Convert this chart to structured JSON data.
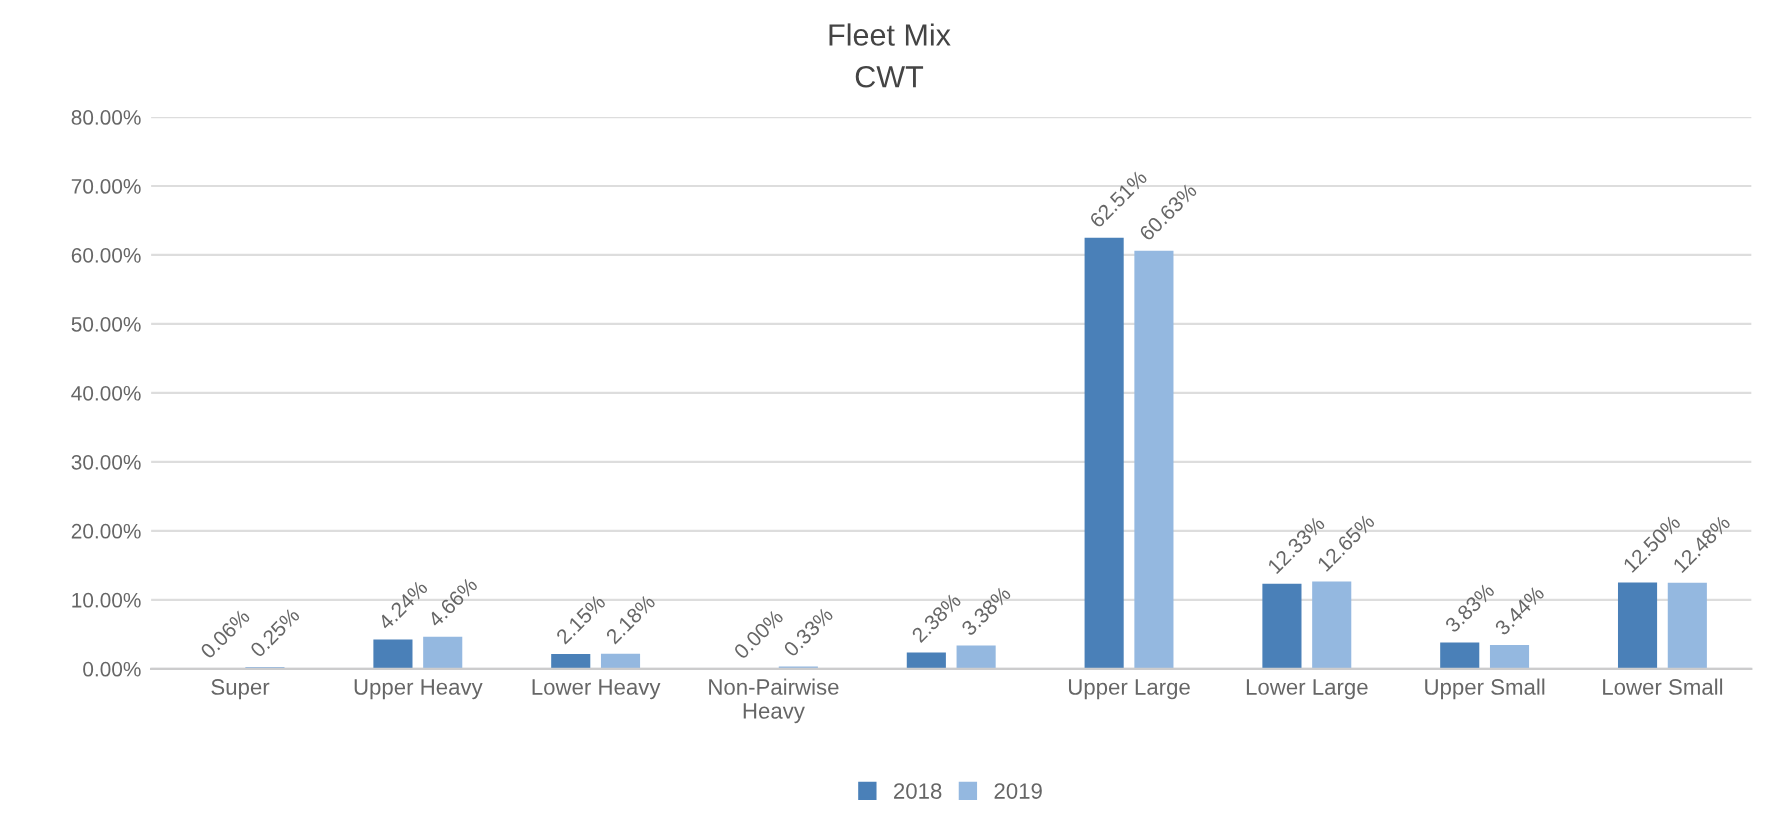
{
  "chart_data": {
    "type": "bar",
    "title": "Fleet Mix",
    "subtitle": "CWT",
    "categories": [
      "Super",
      "Upper Heavy",
      "Lower Heavy",
      "Non-Pairwise\nHeavy",
      null,
      "Upper Large",
      "Lower Large",
      "Upper Small",
      "Lower Small"
    ],
    "series": [
      {
        "name": "2018",
        "color": "#4a80b8",
        "values": [
          0.06,
          4.24,
          2.15,
          0.0,
          2.38,
          62.51,
          12.33,
          3.83,
          12.5
        ],
        "value_labels": [
          "0.06%",
          "4.24%",
          "2.15%",
          "0.00%",
          "2.38%",
          "62.51%",
          "12.33%",
          "3.83%",
          "12.50%"
        ]
      },
      {
        "name": "2019",
        "color": "#94b8e0",
        "values": [
          0.25,
          4.66,
          2.18,
          0.33,
          3.38,
          60.63,
          12.65,
          3.44,
          12.48
        ],
        "value_labels": [
          "0.25%",
          "4.66%",
          "2.18%",
          "0.33%",
          "3.38%",
          "60.63%",
          "12.65%",
          "3.44%",
          "12.48%"
        ]
      }
    ],
    "ylim": [
      0,
      80
    ],
    "yticks": [
      {
        "value": 0,
        "label": "0.00%"
      },
      {
        "value": 10,
        "label": "10.00%"
      },
      {
        "value": 20,
        "label": "20.00%"
      },
      {
        "value": 30,
        "label": "30.00%"
      },
      {
        "value": 40,
        "label": "40.00%"
      },
      {
        "value": 50,
        "label": "50.00%"
      },
      {
        "value": 60,
        "label": "60.00%"
      },
      {
        "value": 70,
        "label": "70.00%"
      },
      {
        "value": 80,
        "label": "80.00%"
      }
    ],
    "grid": "y",
    "legend": "bottom"
  }
}
